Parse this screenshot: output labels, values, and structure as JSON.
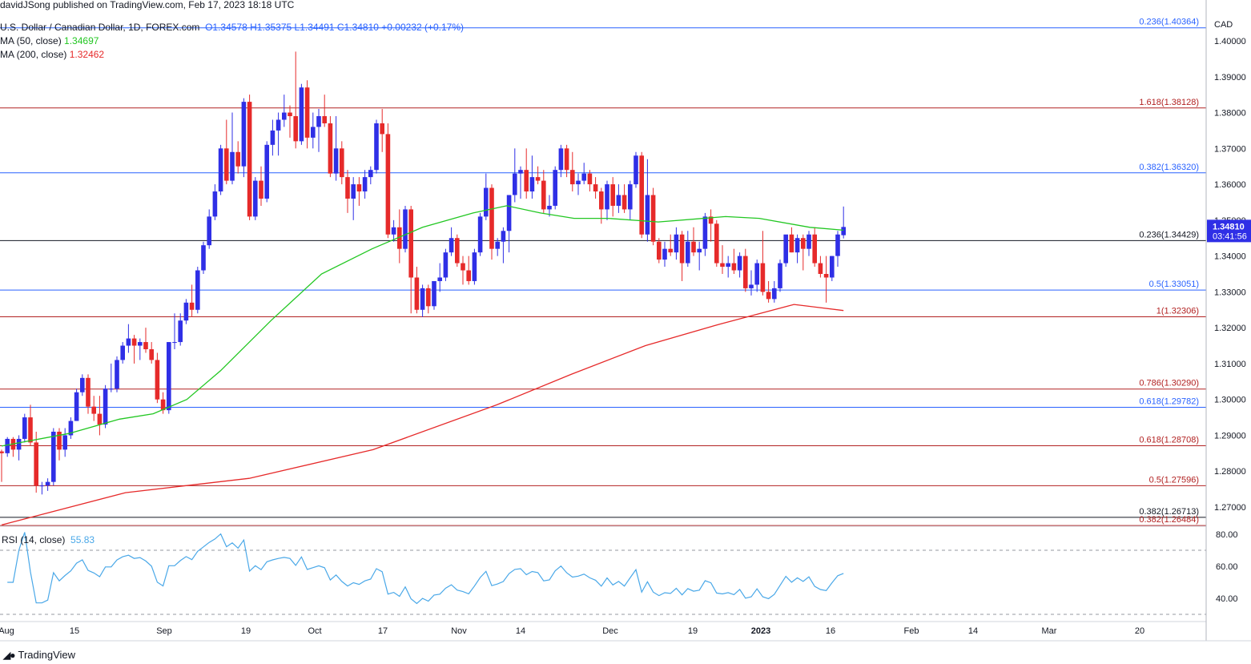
{
  "header": {
    "published": "davidJSong published on TradingView.com, Feb 17, 2023 18:18 UTC",
    "symbol": "U.S. Dollar / Canadian Dollar, 1D, FOREX.com",
    "ohlc": "O1.34578  H1.35375  L1.34491  C1.34810  +0.00232 (+0.17%)",
    "ma50_label": "MA (50, close)",
    "ma50_value": "1.34697",
    "ma200_label": "MA (200, close)",
    "ma200_value": "1.32462",
    "currency": "CAD"
  },
  "rsi": {
    "label": "RSI (14, close)",
    "value": "55.83",
    "ticks": [
      "80.00",
      "60.00",
      "40.00"
    ]
  },
  "price_tag": {
    "price": "1.34810",
    "countdown": "03:41:56"
  },
  "footer": {
    "brand": "TradingView"
  },
  "colors": {
    "up": "#2f2fe6",
    "down": "#e62a2a",
    "ma50": "#22c722",
    "ma200": "#e62a2a",
    "rsi": "#4aa8e8",
    "fib_blue": "#2962ff",
    "fib_red": "#b22222",
    "fib_black": "#131722"
  },
  "chart_data": {
    "type": "candlestick",
    "ylim": [
      1.262,
      1.405
    ],
    "y_ticks": [
      "1.40000",
      "1.39000",
      "1.38000",
      "1.37000",
      "1.36000",
      "1.35000",
      "1.34000",
      "1.33000",
      "1.32000",
      "1.31000",
      "1.30000",
      "1.29000",
      "1.28000",
      "1.27000"
    ],
    "x_ticks": [
      "Aug",
      "15",
      "Sep",
      "19",
      "Oct",
      "17",
      "Nov",
      "14",
      "Dec",
      "19",
      "2023",
      "16",
      "Feb",
      "14",
      "Mar",
      "20"
    ],
    "fib_levels": [
      {
        "label": "0.236(1.40364)",
        "value": 1.40364,
        "color": "blue"
      },
      {
        "label": "1.618(1.38128)",
        "value": 1.38128,
        "color": "red"
      },
      {
        "label": "0.382(1.36320)",
        "value": 1.3632,
        "color": "blue"
      },
      {
        "label": "0.236(1.34429)",
        "value": 1.34429,
        "color": "black"
      },
      {
        "label": "0.5(1.33051)",
        "value": 1.33051,
        "color": "blue"
      },
      {
        "label": "1(1.32306)",
        "value": 1.32306,
        "color": "red"
      },
      {
        "label": "0.786(1.30290)",
        "value": 1.3029,
        "color": "red"
      },
      {
        "label": "0.618(1.29782)",
        "value": 1.29782,
        "color": "blue"
      },
      {
        "label": "0.618(1.28708)",
        "value": 1.28708,
        "color": "red"
      },
      {
        "label": "0.5(1.27596)",
        "value": 1.27596,
        "color": "red"
      },
      {
        "label": "0.382(1.26713)",
        "value": 1.26713,
        "color": "black"
      },
      {
        "label": "0.382(1.26484)",
        "value": 1.26484,
        "color": "red"
      }
    ],
    "candles": [
      [
        1.2855,
        1.286,
        1.277,
        1.285
      ],
      [
        1.285,
        1.2895,
        1.284,
        1.289
      ],
      [
        1.289,
        1.2895,
        1.284,
        1.286
      ],
      [
        1.286,
        1.29,
        1.283,
        1.289
      ],
      [
        1.289,
        1.296,
        1.288,
        1.295
      ],
      [
        1.295,
        1.2985,
        1.287,
        1.288
      ],
      [
        1.288,
        1.291,
        1.274,
        1.276
      ],
      [
        1.276,
        1.277,
        1.2735,
        1.276
      ],
      [
        1.276,
        1.278,
        1.2745,
        1.277
      ],
      [
        1.277,
        1.292,
        1.276,
        1.291
      ],
      [
        1.291,
        1.292,
        1.283,
        1.286
      ],
      [
        1.286,
        1.292,
        1.284,
        1.29
      ],
      [
        1.29,
        1.295,
        1.289,
        1.294
      ],
      [
        1.294,
        1.303,
        1.294,
        1.302
      ],
      [
        1.302,
        1.307,
        1.301,
        1.306
      ],
      [
        1.306,
        1.307,
        1.296,
        1.298
      ],
      [
        1.298,
        1.301,
        1.294,
        1.296
      ],
      [
        1.296,
        1.301,
        1.29,
        1.293
      ],
      [
        1.293,
        1.304,
        1.292,
        1.303
      ],
      [
        1.303,
        1.31,
        1.302,
        1.303
      ],
      [
        1.303,
        1.312,
        1.302,
        1.311
      ],
      [
        1.311,
        1.316,
        1.31,
        1.315
      ],
      [
        1.315,
        1.321,
        1.313,
        1.317
      ],
      [
        1.317,
        1.318,
        1.31,
        1.315
      ],
      [
        1.315,
        1.317,
        1.311,
        1.316
      ],
      [
        1.316,
        1.32,
        1.313,
        1.314
      ],
      [
        1.314,
        1.316,
        1.31,
        1.311
      ],
      [
        1.311,
        1.313,
        1.299,
        1.3
      ],
      [
        1.3,
        1.302,
        1.296,
        1.297
      ],
      [
        1.297,
        1.316,
        1.296,
        1.316
      ],
      [
        1.316,
        1.324,
        1.314,
        1.316
      ],
      [
        1.316,
        1.324,
        1.315,
        1.322
      ],
      [
        1.322,
        1.328,
        1.321,
        1.327
      ],
      [
        1.327,
        1.332,
        1.323,
        1.325
      ],
      [
        1.325,
        1.337,
        1.324,
        1.336
      ],
      [
        1.336,
        1.344,
        1.335,
        1.343
      ],
      [
        1.343,
        1.353,
        1.342,
        1.351
      ],
      [
        1.351,
        1.36,
        1.35,
        1.358
      ],
      [
        1.358,
        1.371,
        1.357,
        1.37
      ],
      [
        1.37,
        1.378,
        1.36,
        1.361
      ],
      [
        1.361,
        1.38,
        1.36,
        1.369
      ],
      [
        1.369,
        1.372,
        1.363,
        1.365
      ],
      [
        1.365,
        1.384,
        1.362,
        1.383
      ],
      [
        1.383,
        1.385,
        1.35,
        1.351
      ],
      [
        1.351,
        1.362,
        1.35,
        1.361
      ],
      [
        1.361,
        1.365,
        1.354,
        1.356
      ],
      [
        1.356,
        1.372,
        1.355,
        1.371
      ],
      [
        1.371,
        1.378,
        1.368,
        1.375
      ],
      [
        1.375,
        1.38,
        1.368,
        1.378
      ],
      [
        1.378,
        1.385,
        1.376,
        1.38
      ],
      [
        1.38,
        1.382,
        1.373,
        1.379
      ],
      [
        1.379,
        1.397,
        1.37,
        1.372
      ],
      [
        1.372,
        1.388,
        1.371,
        1.387
      ],
      [
        1.387,
        1.389,
        1.37,
        1.373
      ],
      [
        1.373,
        1.38,
        1.37,
        1.376
      ],
      [
        1.376,
        1.381,
        1.369,
        1.379
      ],
      [
        1.379,
        1.385,
        1.376,
        1.377
      ],
      [
        1.377,
        1.379,
        1.362,
        1.363
      ],
      [
        1.363,
        1.379,
        1.361,
        1.37
      ],
      [
        1.37,
        1.372,
        1.36,
        1.362
      ],
      [
        1.362,
        1.364,
        1.352,
        1.356
      ],
      [
        1.356,
        1.362,
        1.35,
        1.36
      ],
      [
        1.36,
        1.362,
        1.354,
        1.358
      ],
      [
        1.358,
        1.364,
        1.356,
        1.362
      ],
      [
        1.362,
        1.365,
        1.36,
        1.364
      ],
      [
        1.364,
        1.378,
        1.363,
        1.377
      ],
      [
        1.377,
        1.381,
        1.369,
        1.374
      ],
      [
        1.374,
        1.377,
        1.345,
        1.346
      ],
      [
        1.346,
        1.35,
        1.344,
        1.348
      ],
      [
        1.348,
        1.353,
        1.338,
        1.342
      ],
      [
        1.342,
        1.354,
        1.341,
        1.353
      ],
      [
        1.353,
        1.354,
        1.324,
        1.334
      ],
      [
        1.334,
        1.337,
        1.324,
        1.325
      ],
      [
        1.325,
        1.332,
        1.323,
        1.331
      ],
      [
        1.331,
        1.332,
        1.324,
        1.326
      ],
      [
        1.326,
        1.333,
        1.325,
        1.333
      ],
      [
        1.333,
        1.338,
        1.33,
        1.334
      ],
      [
        1.334,
        1.342,
        1.333,
        1.341
      ],
      [
        1.341,
        1.348,
        1.34,
        1.345
      ],
      [
        1.345,
        1.346,
        1.337,
        1.338
      ],
      [
        1.338,
        1.34,
        1.332,
        1.336
      ],
      [
        1.336,
        1.34,
        1.332,
        1.333
      ],
      [
        1.333,
        1.342,
        1.332,
        1.341
      ],
      [
        1.341,
        1.352,
        1.34,
        1.351
      ],
      [
        1.351,
        1.363,
        1.35,
        1.359
      ],
      [
        1.359,
        1.36,
        1.339,
        1.342
      ],
      [
        1.342,
        1.345,
        1.34,
        1.344
      ],
      [
        1.344,
        1.348,
        1.338,
        1.347
      ],
      [
        1.347,
        1.357,
        1.341,
        1.357
      ],
      [
        1.357,
        1.37,
        1.355,
        1.363
      ],
      [
        1.363,
        1.365,
        1.356,
        1.364
      ],
      [
        1.364,
        1.37,
        1.356,
        1.358
      ],
      [
        1.358,
        1.368,
        1.356,
        1.362
      ],
      [
        1.362,
        1.365,
        1.36,
        1.361
      ],
      [
        1.361,
        1.364,
        1.352,
        1.353
      ],
      [
        1.353,
        1.357,
        1.351,
        1.354
      ],
      [
        1.354,
        1.365,
        1.353,
        1.364
      ],
      [
        1.364,
        1.371,
        1.362,
        1.37
      ],
      [
        1.37,
        1.371,
        1.362,
        1.364
      ],
      [
        1.364,
        1.369,
        1.358,
        1.36
      ],
      [
        1.36,
        1.363,
        1.357,
        1.361
      ],
      [
        1.361,
        1.366,
        1.36,
        1.363
      ],
      [
        1.363,
        1.364,
        1.358,
        1.36
      ],
      [
        1.36,
        1.362,
        1.356,
        1.358
      ],
      [
        1.358,
        1.359,
        1.349,
        1.353
      ],
      [
        1.353,
        1.361,
        1.35,
        1.36
      ],
      [
        1.36,
        1.362,
        1.351,
        1.354
      ],
      [
        1.354,
        1.36,
        1.352,
        1.357
      ],
      [
        1.357,
        1.36,
        1.352,
        1.353
      ],
      [
        1.353,
        1.361,
        1.35,
        1.36
      ],
      [
        1.36,
        1.369,
        1.359,
        1.368
      ],
      [
        1.368,
        1.369,
        1.345,
        1.346
      ],
      [
        1.346,
        1.367,
        1.344,
        1.357
      ],
      [
        1.357,
        1.359,
        1.343,
        1.344
      ],
      [
        1.344,
        1.345,
        1.338,
        1.339
      ],
      [
        1.339,
        1.344,
        1.337,
        1.342
      ],
      [
        1.342,
        1.346,
        1.34,
        1.341
      ],
      [
        1.341,
        1.348,
        1.339,
        1.346
      ],
      [
        1.346,
        1.347,
        1.333,
        1.338
      ],
      [
        1.338,
        1.347,
        1.337,
        1.344
      ],
      [
        1.344,
        1.348,
        1.34,
        1.341
      ],
      [
        1.341,
        1.344,
        1.336,
        1.342
      ],
      [
        1.342,
        1.352,
        1.34,
        1.351
      ],
      [
        1.351,
        1.353,
        1.344,
        1.349
      ],
      [
        1.349,
        1.35,
        1.337,
        1.338
      ],
      [
        1.338,
        1.343,
        1.335,
        1.337
      ],
      [
        1.337,
        1.34,
        1.334,
        1.338
      ],
      [
        1.338,
        1.342,
        1.335,
        1.336
      ],
      [
        1.336,
        1.341,
        1.334,
        1.34
      ],
      [
        1.34,
        1.342,
        1.33,
        1.331
      ],
      [
        1.331,
        1.336,
        1.329,
        1.332
      ],
      [
        1.332,
        1.339,
        1.33,
        1.338
      ],
      [
        1.338,
        1.347,
        1.329,
        1.33
      ],
      [
        1.33,
        1.333,
        1.327,
        1.328
      ],
      [
        1.328,
        1.333,
        1.327,
        1.331
      ],
      [
        1.331,
        1.339,
        1.33,
        1.338
      ],
      [
        1.338,
        1.345,
        1.337,
        1.346
      ],
      [
        1.346,
        1.348,
        1.341,
        1.341
      ],
      [
        1.341,
        1.346,
        1.338,
        1.345
      ],
      [
        1.345,
        1.346,
        1.336,
        1.342
      ],
      [
        1.342,
        1.347,
        1.34,
        1.346
      ],
      [
        1.346,
        1.348,
        1.337,
        1.338
      ],
      [
        1.338,
        1.34,
        1.334,
        1.335
      ],
      [
        1.335,
        1.34,
        1.327,
        1.334
      ],
      [
        1.334,
        1.34,
        1.333,
        1.34
      ],
      [
        1.34,
        1.347,
        1.337,
        1.346
      ],
      [
        1.3458,
        1.3538,
        1.3449,
        1.3481
      ]
    ],
    "ma50": [
      [
        0,
        1.287
      ],
      [
        20,
        1.2905
      ],
      [
        35,
        1.2945
      ],
      [
        45,
        1.296
      ],
      [
        55,
        1.3
      ],
      [
        65,
        1.308
      ],
      [
        80,
        1.322
      ],
      [
        95,
        1.335
      ],
      [
        110,
        1.342
      ],
      [
        125,
        1.348
      ],
      [
        140,
        1.352
      ],
      [
        150,
        1.354
      ],
      [
        160,
        1.352
      ],
      [
        170,
        1.3505
      ],
      [
        180,
        1.3505
      ],
      [
        195,
        1.3495
      ],
      [
        215,
        1.351
      ],
      [
        225,
        1.3505
      ],
      [
        240,
        1.348
      ],
      [
        250,
        1.3472
      ]
    ],
    "ma200": [
      [
        0,
        1.265
      ],
      [
        50,
        1.274
      ],
      [
        100,
        1.278
      ],
      [
        150,
        1.286
      ],
      [
        200,
        1.2985
      ],
      [
        230,
        1.307
      ],
      [
        260,
        1.315
      ],
      [
        290,
        1.321
      ],
      [
        320,
        1.3265
      ],
      [
        340,
        1.3248
      ]
    ]
  }
}
